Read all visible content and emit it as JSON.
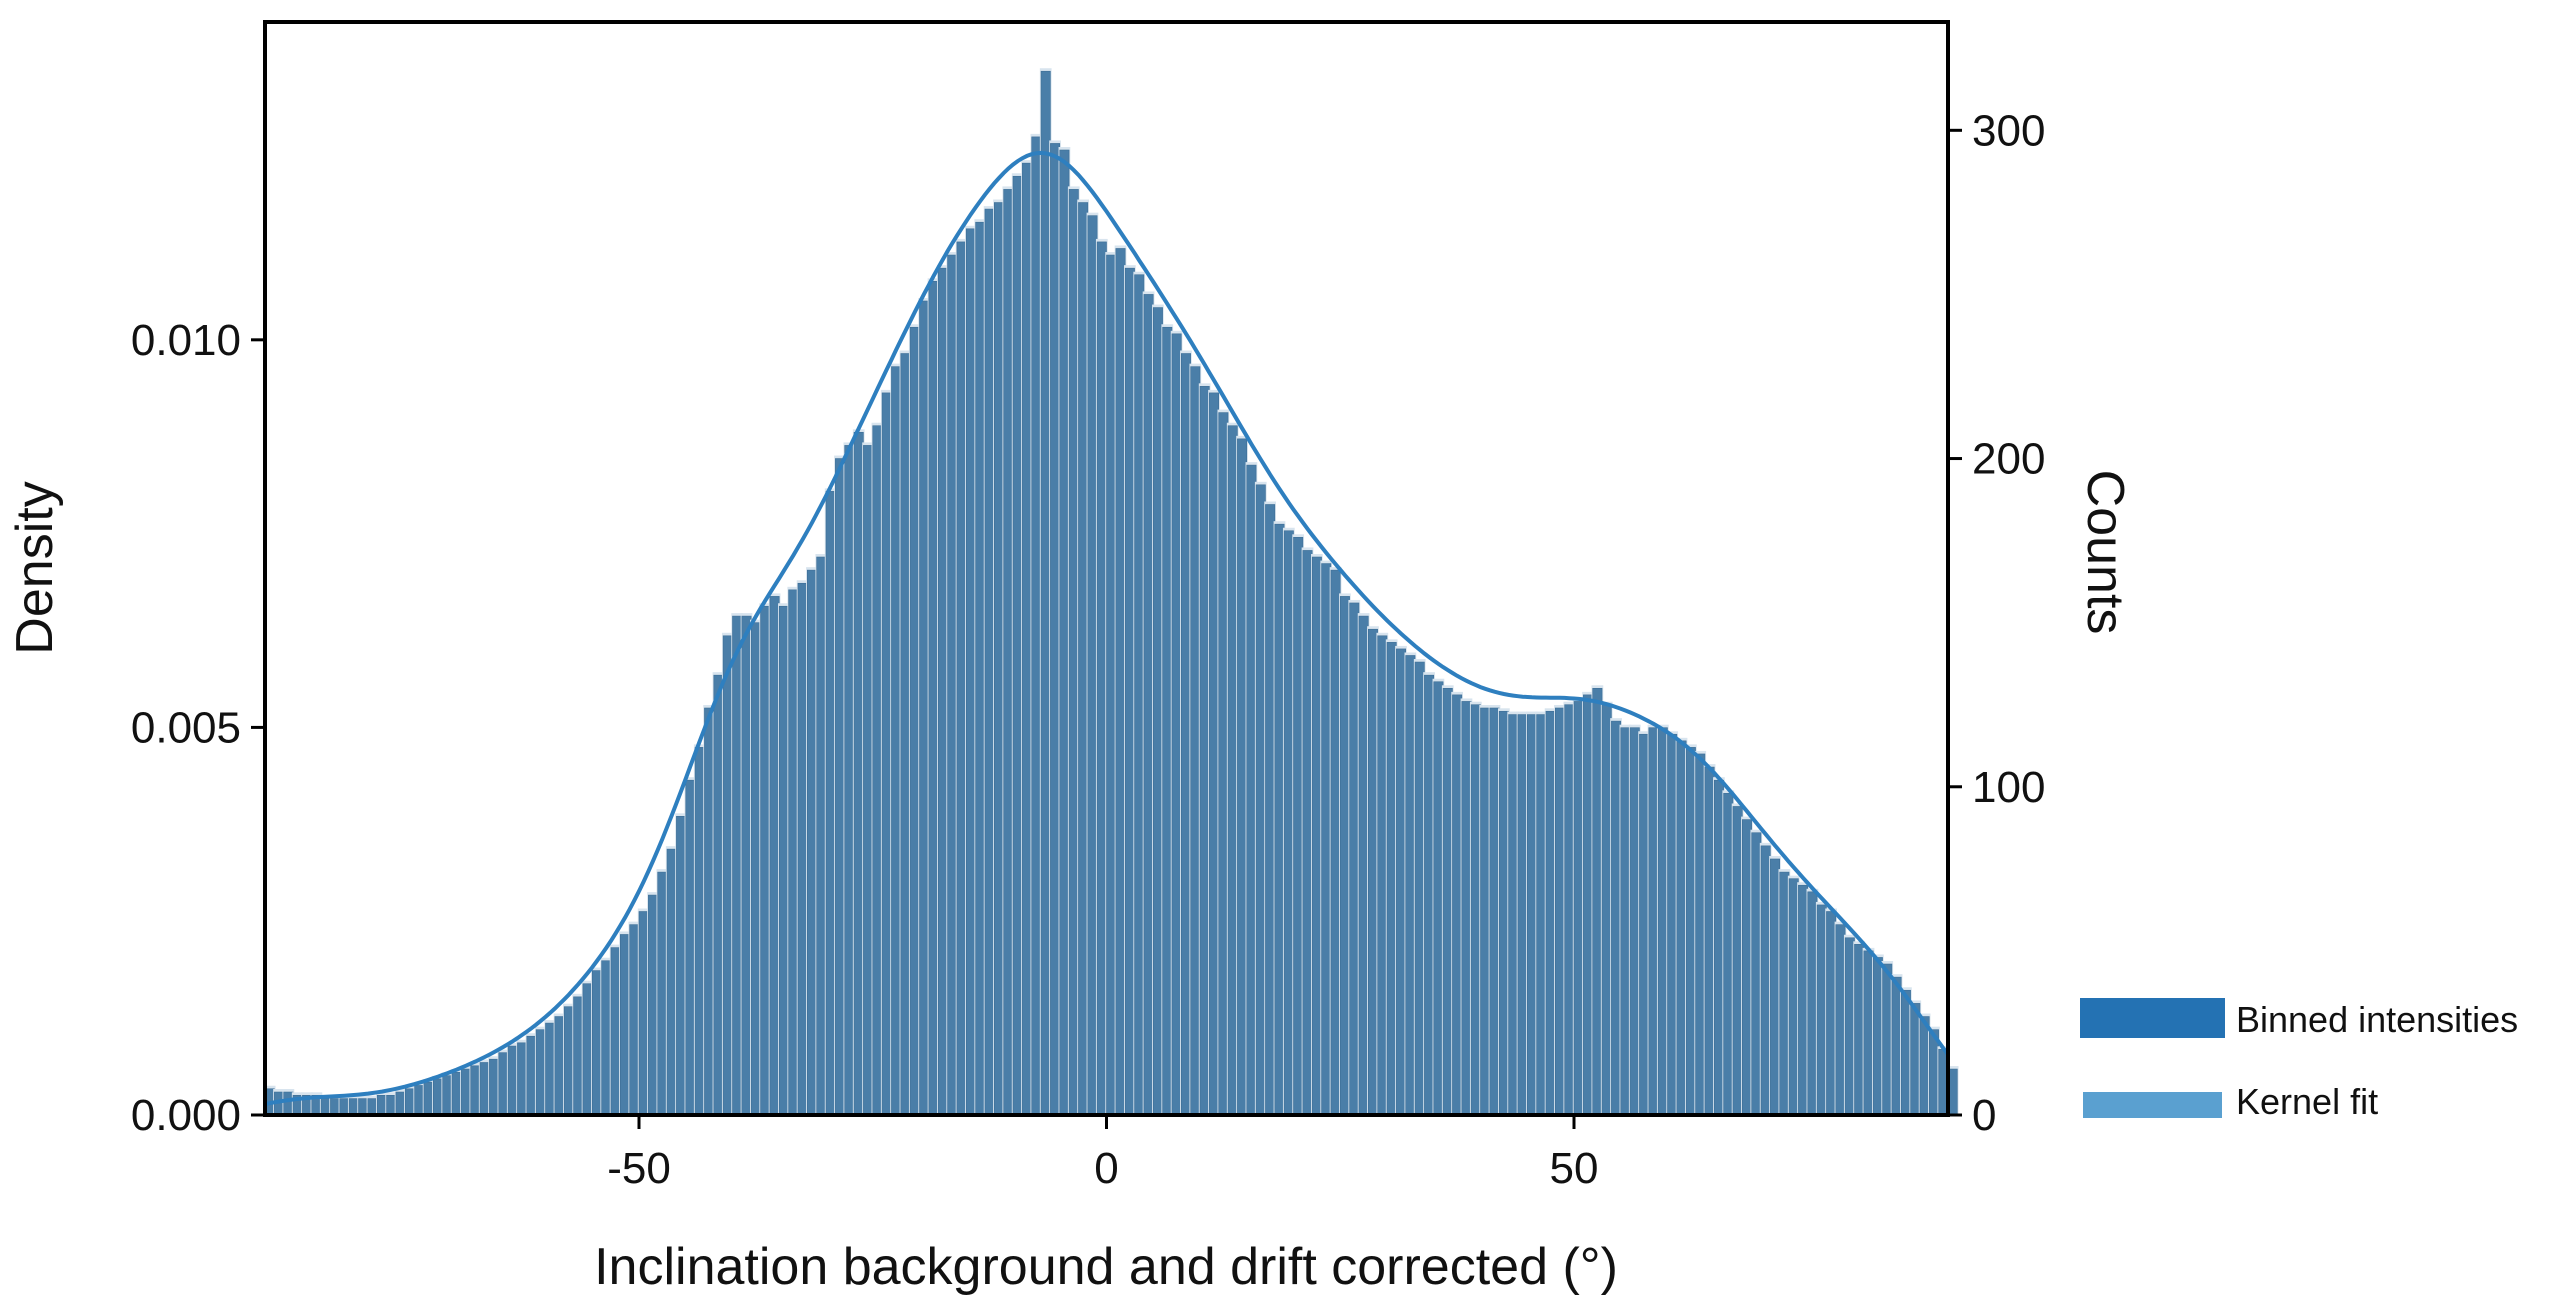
{
  "chart_data": {
    "type": "bar",
    "xlabel": "Inclination background and drift corrected (°)",
    "ylabel": "Density",
    "ylabel_right": "Counts",
    "xlim": [
      -90,
      90
    ],
    "ylim": [
      0,
      0.0141
    ],
    "ylim_right": [
      0,
      333
    ],
    "x_ticks": [
      -50,
      0,
      50
    ],
    "x_tick_labels": [
      "-50",
      "0",
      "50"
    ],
    "y_ticks": [
      0,
      0.005,
      0.01
    ],
    "y_tick_labels": [
      "0.000",
      "0.005",
      "0.010"
    ],
    "y_right_ticks": [
      0,
      100,
      200,
      300
    ],
    "y_right_tick_labels": [
      "0",
      "100",
      "200",
      "300"
    ],
    "grid": false,
    "legend_position": "bottom-right",
    "colors": {
      "bars": "#4A7EA8",
      "bar_edge": "#3D6E96",
      "bar_shadow": "#D8E4EE",
      "kde": "#2E7FBF",
      "legend_bars": "#2472B3",
      "legend_kde": "#5AA0D0"
    },
    "legend": [
      {
        "label": "Binned intensities",
        "kind": "bar"
      },
      {
        "label": "Kernel fit",
        "kind": "line"
      }
    ],
    "bin_width": 1,
    "bin_start": -90,
    "counts": [
      8,
      7,
      7,
      6,
      6,
      6,
      5,
      5,
      5,
      5,
      5,
      5,
      6,
      6,
      7,
      8,
      9,
      10,
      11,
      12,
      13,
      14,
      15,
      16,
      17,
      19,
      21,
      22,
      24,
      26,
      28,
      30,
      33,
      36,
      40,
      44,
      47,
      51,
      55,
      58,
      62,
      67,
      74,
      81,
      91,
      102,
      112,
      124,
      134,
      146,
      152,
      152,
      150,
      155,
      158,
      155,
      160,
      162,
      166,
      170,
      190,
      200,
      204,
      208,
      204,
      210,
      220,
      228,
      232,
      240,
      248,
      254,
      258,
      262,
      266,
      270,
      272,
      276,
      278,
      282,
      286,
      290,
      298,
      318,
      296,
      294,
      282,
      278,
      274,
      266,
      262,
      264,
      258,
      256,
      250,
      246,
      240,
      238,
      232,
      228,
      222,
      220,
      214,
      210,
      206,
      198,
      192,
      186,
      180,
      178,
      176,
      172,
      170,
      168,
      166,
      158,
      156,
      152,
      148,
      146,
      144,
      142,
      140,
      138,
      134,
      132,
      130,
      128,
      126,
      125,
      124,
      124,
      123,
      122,
      122,
      122,
      122,
      123,
      124,
      125,
      126,
      128,
      130,
      125,
      120,
      118,
      118,
      116,
      118,
      118,
      116,
      114,
      112,
      110,
      106,
      102,
      98,
      94,
      90,
      86,
      82,
      78,
      74,
      72,
      70,
      68,
      64,
      62,
      58,
      54,
      52,
      50,
      48,
      46,
      42,
      38,
      34,
      30,
      26,
      20,
      14
    ]
  }
}
